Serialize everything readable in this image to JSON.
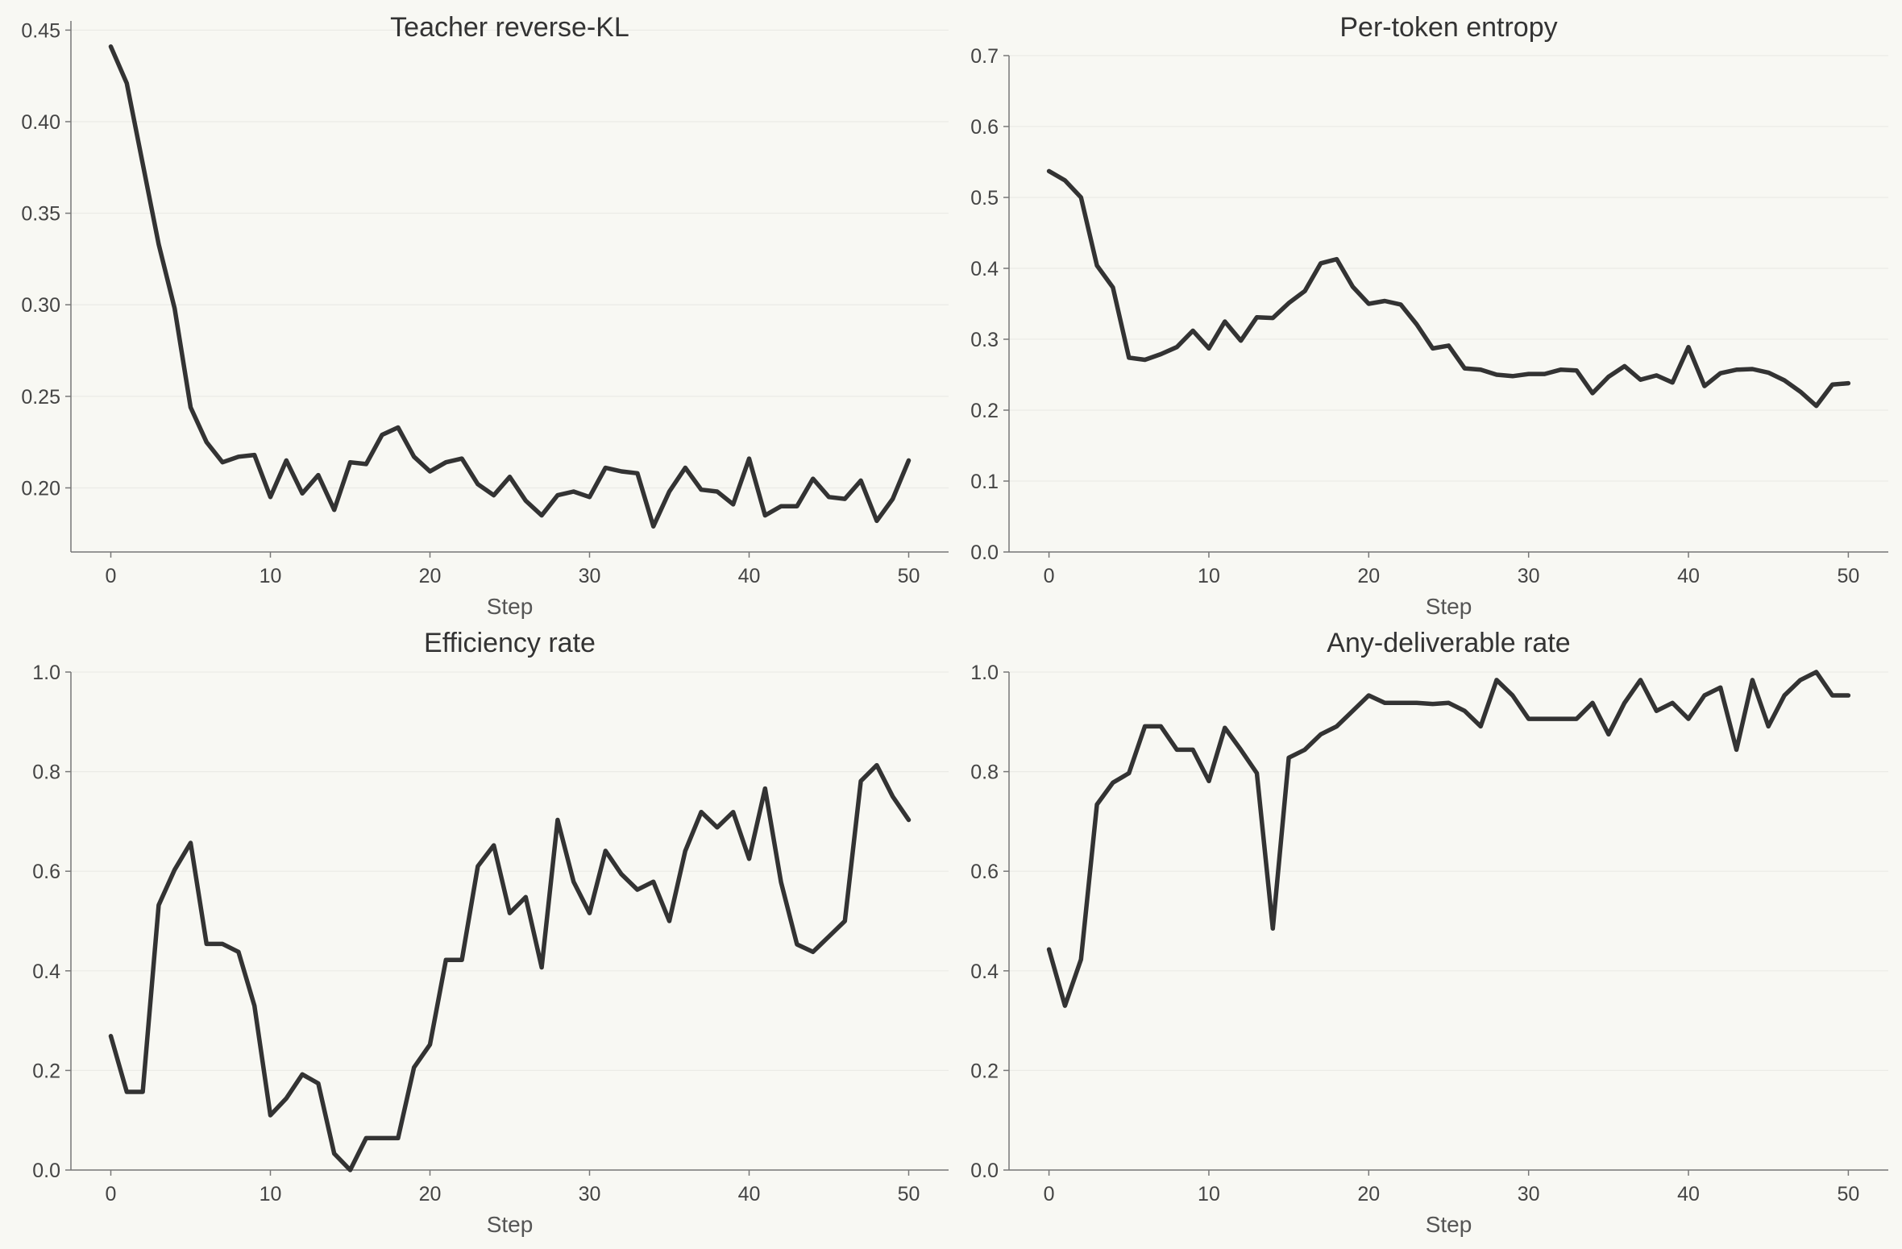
{
  "colors": {
    "background": "#f8f8f3",
    "line": "#333333",
    "axis": "#777777",
    "grid": "#ebebe6"
  },
  "chart_data": [
    {
      "type": "line",
      "title": "Teacher reverse-KL",
      "xlabel": "Step",
      "ylabel": "",
      "xlim": [
        -2.5,
        52.5
      ],
      "ylim": [
        0.165,
        0.455
      ],
      "xticks": [
        0,
        10,
        20,
        30,
        40,
        50
      ],
      "yticks": [
        0.2,
        0.25,
        0.3,
        0.35,
        0.4,
        0.45
      ],
      "ytick_labels": [
        "0.20",
        "0.25",
        "0.30",
        "0.35",
        "0.40",
        "0.45"
      ],
      "grid": "horizontal",
      "series": [
        {
          "x": [
            0,
            1,
            2,
            3,
            4,
            5,
            6,
            7,
            8,
            9,
            10,
            11,
            12,
            13,
            14,
            15,
            16,
            17,
            18,
            19,
            20,
            21,
            22,
            23,
            24,
            25,
            26,
            27,
            28,
            29,
            30,
            31,
            32,
            33,
            34,
            35,
            36,
            37,
            38,
            39,
            40,
            41,
            42,
            43,
            44,
            45,
            46,
            47,
            48,
            49,
            50
          ],
          "values": [
            0.441,
            0.421,
            0.377,
            0.333,
            0.298,
            0.244,
            0.225,
            0.214,
            0.217,
            0.218,
            0.195,
            0.215,
            0.197,
            0.207,
            0.188,
            0.214,
            0.213,
            0.229,
            0.233,
            0.217,
            0.209,
            0.214,
            0.216,
            0.202,
            0.196,
            0.206,
            0.193,
            0.185,
            0.196,
            0.198,
            0.195,
            0.211,
            0.209,
            0.208,
            0.179,
            0.198,
            0.211,
            0.199,
            0.198,
            0.191,
            0.216,
            0.185,
            0.19,
            0.19,
            0.205,
            0.195,
            0.194,
            0.204,
            0.182,
            0.194,
            0.215
          ]
        }
      ]
    },
    {
      "type": "line",
      "title": "Per-token entropy",
      "xlabel": "Step",
      "ylabel": "",
      "xlim": [
        -2.5,
        52.5
      ],
      "ylim": [
        0,
        0.7
      ],
      "xticks": [
        0,
        10,
        20,
        30,
        40,
        50
      ],
      "yticks": [
        0.0,
        0.1,
        0.2,
        0.3,
        0.4,
        0.5,
        0.6,
        0.7
      ],
      "ytick_labels": [
        "0.0",
        "0.1",
        "0.2",
        "0.3",
        "0.4",
        "0.5",
        "0.6",
        "0.7"
      ],
      "grid": "horizontal",
      "series": [
        {
          "x": [
            0,
            1,
            2,
            3,
            4,
            5,
            6,
            7,
            8,
            9,
            10,
            11,
            12,
            13,
            14,
            15,
            16,
            17,
            18,
            19,
            20,
            21,
            22,
            23,
            24,
            25,
            26,
            27,
            28,
            29,
            30,
            31,
            32,
            33,
            34,
            35,
            36,
            37,
            38,
            39,
            40,
            41,
            42,
            43,
            44,
            45,
            46,
            47,
            48,
            49,
            50
          ],
          "values": [
            0.537,
            0.524,
            0.5,
            0.404,
            0.373,
            0.274,
            0.271,
            0.279,
            0.289,
            0.312,
            0.287,
            0.325,
            0.298,
            0.331,
            0.33,
            0.351,
            0.368,
            0.407,
            0.413,
            0.374,
            0.35,
            0.354,
            0.349,
            0.321,
            0.287,
            0.291,
            0.259,
            0.257,
            0.25,
            0.248,
            0.251,
            0.251,
            0.257,
            0.256,
            0.224,
            0.247,
            0.262,
            0.243,
            0.249,
            0.239,
            0.289,
            0.234,
            0.252,
            0.257,
            0.258,
            0.253,
            0.242,
            0.226,
            0.206,
            0.236,
            0.238
          ]
        }
      ]
    },
    {
      "type": "line",
      "title": "Efficiency rate",
      "xlabel": "Step",
      "ylabel": "",
      "xlim": [
        -2.5,
        52.5
      ],
      "ylim": [
        0,
        1.0
      ],
      "xticks": [
        0,
        10,
        20,
        30,
        40,
        50
      ],
      "yticks": [
        0.0,
        0.2,
        0.4,
        0.6,
        0.8,
        1.0
      ],
      "ytick_labels": [
        "0.0",
        "0.2",
        "0.4",
        "0.6",
        "0.8",
        "1.0"
      ],
      "grid": "horizontal",
      "series": [
        {
          "x": [
            0,
            1,
            2,
            3,
            4,
            5,
            6,
            7,
            8,
            9,
            10,
            11,
            12,
            13,
            14,
            15,
            16,
            17,
            18,
            19,
            20,
            21,
            22,
            23,
            24,
            25,
            26,
            27,
            28,
            29,
            30,
            31,
            32,
            33,
            34,
            35,
            36,
            37,
            38,
            39,
            40,
            41,
            42,
            43,
            44,
            45,
            46,
            47,
            48,
            49,
            50
          ],
          "values": [
            0.269,
            0.157,
            0.157,
            0.532,
            0.603,
            0.657,
            0.454,
            0.454,
            0.438,
            0.33,
            0.11,
            0.144,
            0.192,
            0.174,
            0.033,
            0.0,
            0.064,
            0.064,
            0.064,
            0.206,
            0.252,
            0.422,
            0.422,
            0.61,
            0.652,
            0.516,
            0.548,
            0.407,
            0.703,
            0.579,
            0.516,
            0.641,
            0.594,
            0.563,
            0.579,
            0.5,
            0.641,
            0.719,
            0.688,
            0.719,
            0.625,
            0.766,
            0.578,
            0.453,
            0.438,
            0.469,
            0.5,
            0.781,
            0.813,
            0.75,
            0.703
          ]
        }
      ]
    },
    {
      "type": "line",
      "title": "Any-deliverable rate",
      "xlabel": "Step",
      "ylabel": "",
      "xlim": [
        -2.5,
        52.5
      ],
      "ylim": [
        0,
        1.0
      ],
      "xticks": [
        0,
        10,
        20,
        30,
        40,
        50
      ],
      "yticks": [
        0.0,
        0.2,
        0.4,
        0.6,
        0.8,
        1.0
      ],
      "ytick_labels": [
        "0.0",
        "0.2",
        "0.4",
        "0.6",
        "0.8",
        "1.0"
      ],
      "grid": "horizontal",
      "series": [
        {
          "x": [
            0,
            1,
            2,
            3,
            4,
            5,
            6,
            7,
            8,
            9,
            10,
            11,
            12,
            13,
            14,
            15,
            16,
            17,
            18,
            19,
            20,
            21,
            22,
            23,
            24,
            25,
            26,
            27,
            28,
            29,
            30,
            31,
            32,
            33,
            34,
            35,
            36,
            37,
            38,
            39,
            40,
            41,
            42,
            43,
            44,
            45,
            46,
            47,
            48,
            49,
            50
          ],
          "values": [
            0.443,
            0.33,
            0.423,
            0.734,
            0.778,
            0.797,
            0.891,
            0.891,
            0.844,
            0.844,
            0.781,
            0.888,
            0.844,
            0.797,
            0.485,
            0.828,
            0.844,
            0.875,
            0.891,
            0.922,
            0.953,
            0.938,
            0.938,
            0.938,
            0.936,
            0.938,
            0.922,
            0.891,
            0.984,
            0.953,
            0.906,
            0.906,
            0.906,
            0.906,
            0.938,
            0.875,
            0.938,
            0.984,
            0.922,
            0.938,
            0.906,
            0.953,
            0.969,
            0.844,
            0.984,
            0.891,
            0.953,
            0.984,
            1.0,
            0.953,
            0.953
          ]
        }
      ]
    }
  ]
}
